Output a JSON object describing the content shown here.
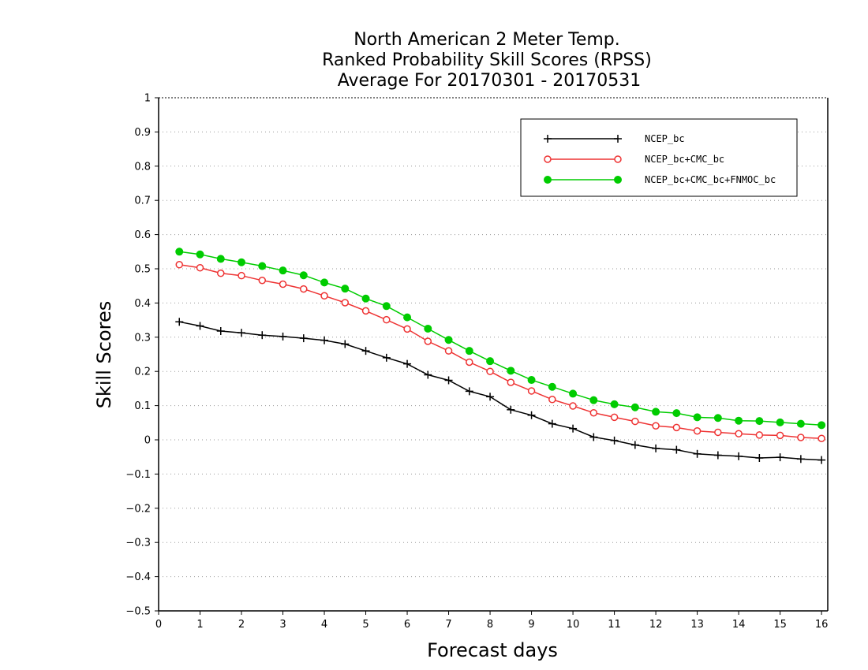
{
  "chart_data": {
    "type": "line",
    "title_lines": [
      "North American 2 Meter Temp.",
      "Ranked Probability Skill Scores (RPSS)",
      "Average For 20170301 - 20170531"
    ],
    "xlabel": "Forecast days",
    "ylabel": "Skill Scores",
    "xlim": [
      0,
      16.15
    ],
    "ylim": [
      -0.5,
      1
    ],
    "x_ticks": [
      0,
      1,
      2,
      3,
      4,
      5,
      6,
      7,
      8,
      9,
      10,
      11,
      12,
      13,
      14,
      15,
      16
    ],
    "x_tick_labels": [
      "0",
      "1",
      "2",
      "3",
      "4",
      "5",
      "6",
      "7",
      "8",
      "9",
      "10",
      "11",
      "12",
      "13",
      "14",
      "15",
      "16"
    ],
    "y_ticks": [
      -0.5,
      -0.4,
      -0.3,
      -0.2,
      -0.1,
      0,
      0.1,
      0.2,
      0.3,
      0.4,
      0.5,
      0.6,
      0.7,
      0.8,
      0.9,
      1
    ],
    "y_tick_labels": [
      "−0.5",
      "−0.4",
      "−0.3",
      "−0.2",
      "−0.1",
      "0",
      "0.1",
      "0.2",
      "0.3",
      "0.4",
      "0.5",
      "0.6",
      "0.7",
      "0.8",
      "0.9",
      "1"
    ],
    "grid": "horizontal dotted",
    "legend_position": "top-right",
    "x": [
      0.5,
      1,
      1.5,
      2,
      2.5,
      3,
      3.5,
      4,
      4.5,
      5,
      5.5,
      6,
      6.5,
      7,
      7.5,
      8,
      8.5,
      9,
      9.5,
      10,
      10.5,
      11,
      11.5,
      12,
      12.5,
      13,
      13.5,
      14,
      14.5,
      15,
      15.5,
      16
    ],
    "series": [
      {
        "name": "NCEP_bc",
        "color": "#000000",
        "marker": "plus",
        "values": [
          0.345,
          0.333,
          0.318,
          0.313,
          0.306,
          0.302,
          0.297,
          0.291,
          0.28,
          0.26,
          0.24,
          0.222,
          0.19,
          0.174,
          0.142,
          0.126,
          0.088,
          0.072,
          0.047,
          0.033,
          0.008,
          -0.002,
          -0.015,
          -0.025,
          -0.029,
          -0.041,
          -0.045,
          -0.048,
          -0.053,
          -0.051,
          -0.056,
          -0.059
        ]
      },
      {
        "name": "NCEP_bc+CMC_bc",
        "color": "#ee3333",
        "marker": "open-circle",
        "values": [
          0.512,
          0.503,
          0.487,
          0.48,
          0.466,
          0.455,
          0.441,
          0.421,
          0.401,
          0.377,
          0.351,
          0.324,
          0.288,
          0.26,
          0.227,
          0.2,
          0.168,
          0.143,
          0.118,
          0.099,
          0.079,
          0.066,
          0.054,
          0.041,
          0.036,
          0.026,
          0.022,
          0.018,
          0.014,
          0.013,
          0.007,
          0.004
        ]
      },
      {
        "name": "NCEP_bc+CMC_bc+FNMOC_bc",
        "color": "#00cc00",
        "marker": "filled-circle",
        "values": [
          0.55,
          0.542,
          0.529,
          0.519,
          0.508,
          0.495,
          0.481,
          0.46,
          0.442,
          0.413,
          0.391,
          0.358,
          0.325,
          0.292,
          0.26,
          0.23,
          0.202,
          0.175,
          0.155,
          0.135,
          0.116,
          0.104,
          0.095,
          0.082,
          0.078,
          0.066,
          0.064,
          0.056,
          0.055,
          0.051,
          0.047,
          0.043
        ]
      }
    ]
  }
}
